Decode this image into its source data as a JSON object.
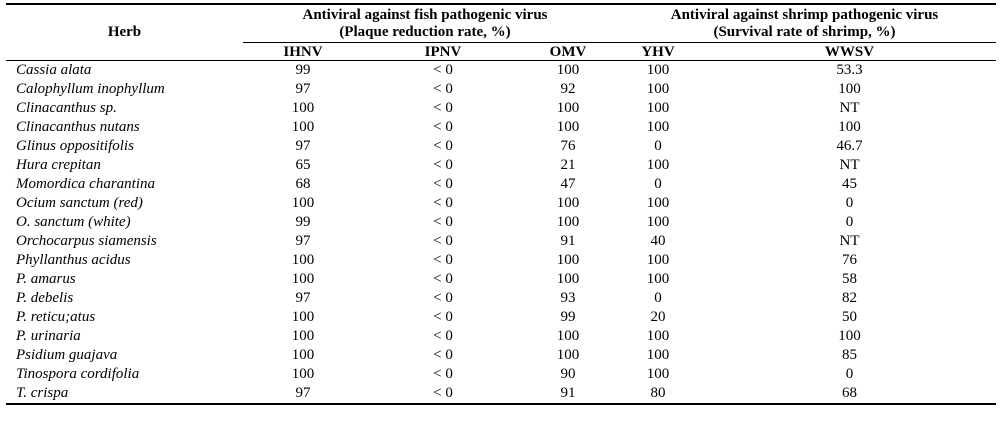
{
  "table": {
    "header": {
      "herb": "Herb",
      "fish_group": {
        "line1": "Antiviral against fish pathogenic virus",
        "line2": "(Plaque reduction rate, %)"
      },
      "shrimp_group": {
        "line1": "Antiviral against shrimp pathogenic virus",
        "line2": "(Survival rate of shrimp, %)"
      },
      "columns": [
        "IHNV",
        "IPNV",
        "OMV",
        "YHV",
        "WWSV"
      ]
    },
    "rows": [
      {
        "herb": "Cassia alata",
        "ihnv": "99",
        "ipnv": "< 0",
        "omv": "100",
        "yhv": "100",
        "wwsv": "53.3"
      },
      {
        "herb": "Calophyllum inophyllum",
        "ihnv": "97",
        "ipnv": "< 0",
        "omv": "92",
        "yhv": "100",
        "wwsv": "100"
      },
      {
        "herb": "Clinacanthus sp.",
        "ihnv": "100",
        "ipnv": "< 0",
        "omv": "100",
        "yhv": "100",
        "wwsv": "NT"
      },
      {
        "herb": "Clinacanthus nutans",
        "ihnv": "100",
        "ipnv": "< 0",
        "omv": "100",
        "yhv": "100",
        "wwsv": "100"
      },
      {
        "herb": "Glinus oppositifolis",
        "ihnv": "97",
        "ipnv": "< 0",
        "omv": "76",
        "yhv": "0",
        "wwsv": "46.7"
      },
      {
        "herb": "Hura crepitan",
        "ihnv": "65",
        "ipnv": "< 0",
        "omv": "21",
        "yhv": "100",
        "wwsv": "NT"
      },
      {
        "herb": "Momordica charantina",
        "ihnv": "68",
        "ipnv": "< 0",
        "omv": "47",
        "yhv": "0",
        "wwsv": "45"
      },
      {
        "herb": "Ocium sanctum (red)",
        "ihnv": "100",
        "ipnv": "< 0",
        "omv": "100",
        "yhv": "100",
        "wwsv": "0"
      },
      {
        "herb": "O. sanctum (white)",
        "ihnv": "99",
        "ipnv": "< 0",
        "omv": "100",
        "yhv": "100",
        "wwsv": "0"
      },
      {
        "herb": "Orchocarpus siamensis",
        "ihnv": "97",
        "ipnv": "< 0",
        "omv": "91",
        "yhv": "40",
        "wwsv": "NT"
      },
      {
        "herb": "Phyllanthus acidus",
        "ihnv": "100",
        "ipnv": "< 0",
        "omv": "100",
        "yhv": "100",
        "wwsv": "76"
      },
      {
        "herb": "P. amarus",
        "ihnv": "100",
        "ipnv": "< 0",
        "omv": "100",
        "yhv": "100",
        "wwsv": "58"
      },
      {
        "herb": "P. debelis",
        "ihnv": "97",
        "ipnv": "< 0",
        "omv": "93",
        "yhv": "0",
        "wwsv": "82"
      },
      {
        "herb": "P. reticu;atus",
        "ihnv": "100",
        "ipnv": "< 0",
        "omv": "99",
        "yhv": "20",
        "wwsv": "50"
      },
      {
        "herb": "P. urinaria",
        "ihnv": "100",
        "ipnv": "< 0",
        "omv": "100",
        "yhv": "100",
        "wwsv": "100"
      },
      {
        "herb": "Psidium guajava",
        "ihnv": "100",
        "ipnv": "< 0",
        "omv": "100",
        "yhv": "100",
        "wwsv": "85"
      },
      {
        "herb": "Tinospora cordifolia",
        "ihnv": "100",
        "ipnv": "< 0",
        "omv": "90",
        "yhv": "100",
        "wwsv": "0"
      },
      {
        "herb": "T. crispa",
        "ihnv": "97",
        "ipnv": "< 0",
        "omv": "91",
        "yhv": "80",
        "wwsv": "68"
      }
    ]
  }
}
